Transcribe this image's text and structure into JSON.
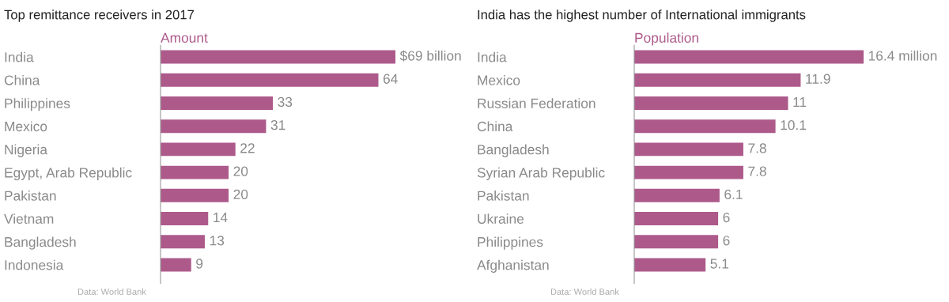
{
  "chart_data": [
    {
      "type": "bar",
      "orientation": "horizontal",
      "title": "Top remittance receivers in 2017",
      "categories": [
        "India",
        "China",
        "Philippines",
        "Mexico",
        "Nigeria",
        "Egypt, Arab Republic",
        "Pakistan",
        "Vietnam",
        "Bangladesh",
        "Indonesia"
      ],
      "series": [
        {
          "name": "Amount",
          "color": "#ad5a8b",
          "values": [
            69,
            64,
            33,
            31,
            22,
            20,
            20,
            14,
            13,
            9
          ],
          "value_labels": [
            "$69 billion",
            "64",
            "33",
            "31",
            "22",
            "20",
            "20",
            "14",
            "13",
            "9"
          ]
        }
      ],
      "annotations": [
        "Data: World Bank"
      ]
    },
    {
      "type": "bar",
      "orientation": "horizontal",
      "title": "India has the highest number of International immigrants",
      "categories": [
        "India",
        "Mexico",
        "Russian Federation",
        "China",
        "Bangladesh",
        "Syrian Arab Republic",
        "Pakistan",
        "Ukraine",
        "Philippines",
        "Afghanistan"
      ],
      "series": [
        {
          "name": "Population",
          "color": "#ad5a8b",
          "values": [
            16.4,
            11.9,
            11,
            10.1,
            7.8,
            7.8,
            6.1,
            6,
            6,
            5.1
          ],
          "value_labels": [
            "16.4 million",
            "11.9",
            "11",
            "10.1",
            "7.8",
            "7.8",
            "6.1",
            "6",
            "6",
            "5.1"
          ]
        }
      ],
      "annotations": [
        "Data: World Bank"
      ]
    }
  ]
}
